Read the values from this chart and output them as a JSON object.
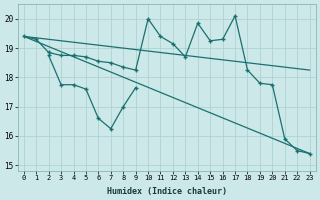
{
  "xlabel": "Humidex (Indice chaleur)",
  "xlim": [
    -0.5,
    23.5
  ],
  "ylim": [
    14.8,
    20.5
  ],
  "xticks": [
    0,
    1,
    2,
    3,
    4,
    5,
    6,
    7,
    8,
    9,
    10,
    11,
    12,
    13,
    14,
    15,
    16,
    17,
    18,
    19,
    20,
    21,
    22,
    23
  ],
  "yticks": [
    15,
    16,
    17,
    18,
    19,
    20
  ],
  "background_color": "#cde8e8",
  "grid_color": "#aacece",
  "line_color": "#1a7070",
  "upper_zigzag_x": [
    0,
    1,
    2,
    3,
    4,
    5,
    6,
    7,
    8,
    9,
    10,
    11,
    12,
    13,
    14,
    15,
    16,
    17,
    18,
    19,
    20,
    21,
    22,
    23
  ],
  "upper_zigzag_y": [
    19.4,
    19.3,
    18.85,
    18.75,
    18.75,
    18.7,
    18.55,
    18.5,
    18.35,
    18.25,
    20.0,
    19.4,
    19.15,
    18.7,
    19.85,
    19.25,
    19.3,
    20.1,
    18.25,
    17.8,
    17.75,
    15.9,
    15.5,
    15.4
  ],
  "lower_zigzag_x": [
    2,
    3,
    4,
    5,
    6,
    7,
    8,
    9
  ],
  "lower_zigzag_y": [
    18.75,
    17.75,
    17.75,
    17.6,
    16.6,
    16.25,
    17.0,
    17.65
  ],
  "trend1_x": [
    0,
    23
  ],
  "trend1_y": [
    19.4,
    18.25
  ],
  "trend2_x": [
    0,
    23
  ],
  "trend2_y": [
    19.4,
    15.4
  ]
}
